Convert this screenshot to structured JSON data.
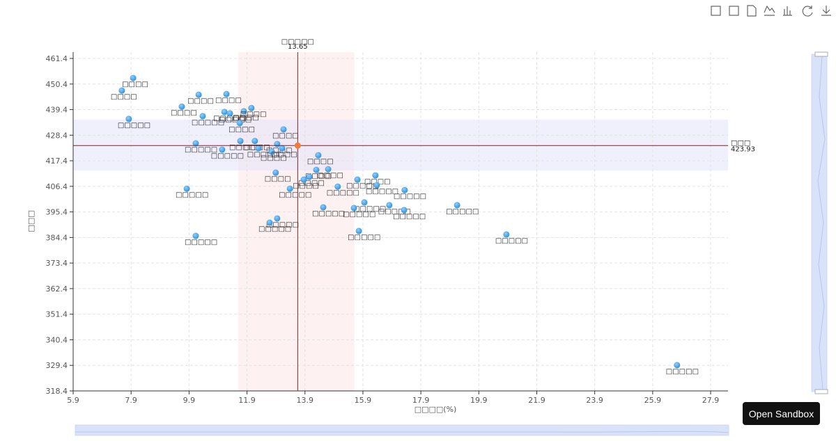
{
  "chart_data": {
    "type": "scatter",
    "x_axis_label": "□□□□(%)",
    "y_axis_label": "□□□",
    "xlim": [
      5.9,
      28.5
    ],
    "ylim": [
      318.4,
      464.1
    ],
    "xticks": [
      5.9,
      7.9,
      9.9,
      11.9,
      13.9,
      15.9,
      17.9,
      19.9,
      21.9,
      23.9,
      25.9,
      27.9
    ],
    "yticks": [
      318.4,
      329.4,
      340.4,
      351.4,
      362.4,
      373.4,
      384.4,
      395.4,
      406.4,
      417.4,
      428.4,
      439.4,
      450.4,
      461.4
    ],
    "grid": true,
    "color": "#2b8ad6",
    "x": [
      7.97,
      7.58,
      9.65,
      10.23,
      11.19,
      7.82,
      10.37,
      11.12,
      11.31,
      11.79,
      12.05,
      11.65,
      13.16,
      10.13,
      11.04,
      11.67,
      12.17,
      12.29,
      12.94,
      12.75,
      13.11,
      14.36,
      12.89,
      14.29,
      14.7,
      14.05,
      13.86,
      15.71,
      16.33,
      15.03,
      16.38,
      9.82,
      13.38,
      17.34,
      15.95,
      16.81,
      14.53,
      15.59,
      17.32,
      19.15,
      12.94,
      12.68,
      15.76,
      10.13,
      20.85,
      26.74
    ],
    "values": [
      453.0,
      447.6,
      440.7,
      445.8,
      446.1,
      435.4,
      436.6,
      438.4,
      437.8,
      438.7,
      440.1,
      433.6,
      430.9,
      424.9,
      422.2,
      425.9,
      425.9,
      422.8,
      424.6,
      421.3,
      422.8,
      419.8,
      412.3,
      413.5,
      413.8,
      410.5,
      409.3,
      409.3,
      411.1,
      406.3,
      406.9,
      405.4,
      405.4,
      404.8,
      399.5,
      398.3,
      397.4,
      397.1,
      396.2,
      398.3,
      392.6,
      390.8,
      387.2,
      385.1,
      385.7,
      329.5
    ],
    "labels": [
      "□□□□",
      "□□□□",
      "□□□□",
      "□□□□",
      "□□□□",
      "□□□□□",
      "□□□□□",
      "□□□□□",
      "□□□□□",
      "□□□□",
      "□□□□",
      "□□□□",
      "□□□□",
      "□□□□□",
      "□□□□□",
      "□□□□□",
      "□□□□",
      "□□□□□",
      "□□□□",
      "□□□□",
      "□□□□",
      "□□□□",
      "□□□□",
      "□□□□",
      "□□□□",
      "□□□□",
      "□□□□",
      "□□□□□",
      "□□□□",
      "□□□□□",
      "□□□□□",
      "□□□□□",
      "□□□□□",
      "□□□□□",
      "□□□□□",
      "□□□□□",
      "□□□□□",
      "□□□□□",
      "□□□□□",
      "□□□□□",
      "□□□□□",
      "□□□□□",
      "□□□□□",
      "□□□□□",
      "□□□□□",
      "□□□□□"
    ],
    "mark_x": {
      "label": "□□□□□",
      "value": 13.65
    },
    "mark_y": {
      "label": "□□□",
      "value": 423.93
    },
    "x_band": [
      11.6,
      15.6
    ],
    "y_band": [
      413.2,
      435.1
    ],
    "mark_color": "#cc0000",
    "highlight_color": "#f47a3a"
  },
  "button": "Open Sandbox"
}
